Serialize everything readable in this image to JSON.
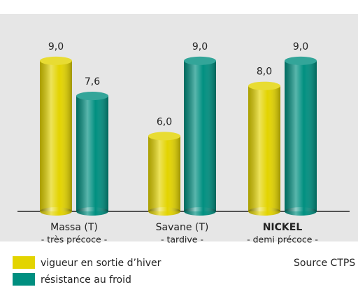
{
  "chart_data": {
    "type": "bar",
    "categories": [
      "Massa (T)",
      "Savane (T)",
      "NICKEL"
    ],
    "category_notes": [
      "- très précoce -",
      "- tardive -",
      "- demi précoce -"
    ],
    "series": [
      {
        "name": "vigueur en sortie d’hiver",
        "color": "#e3d400",
        "values": [
          9.0,
          6.0,
          8.0
        ],
        "value_labels": [
          "9,0",
          "6,0",
          "8,0"
        ]
      },
      {
        "name": "résistance au froid",
        "color": "#008f80",
        "values": [
          7.6,
          9.0,
          9.0
        ],
        "value_labels": [
          "7,6",
          "9,0",
          "9,0"
        ]
      }
    ],
    "ylim": [
      3,
      10
    ],
    "source": "Source CTPS"
  }
}
